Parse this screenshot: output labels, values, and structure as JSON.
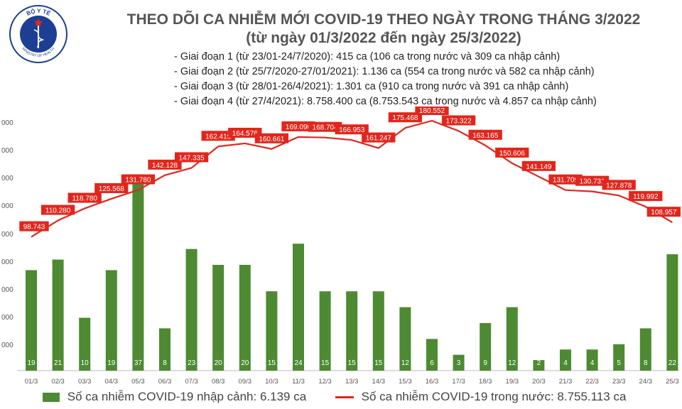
{
  "logo": {
    "text_top": "BỘ Y TẾ",
    "text_bottom": "MINISTRY OF HEALTH",
    "icon": "ministry-of-health-emblem"
  },
  "title": {
    "line1": "THEO DÕI CA NHIỄM MỚI COVID-19 THEO NGÀY TRONG THÁNG 3/2022",
    "line2": "(từ ngày 01/3/2022 đến ngày 25/3/2022)"
  },
  "stages": [
    "- Giai đoạn 1 (từ 23/01-24/7/2020): 415 ca (106 ca trong nước và 309 ca nhập cảnh)",
    "- Giai đoạn 2 (từ 25/7/2020-27/01/2021): 1.136 ca (554 ca trong nước và 582 ca nhập cảnh)",
    "- Giai đoạn 3 (từ 28/01-26/4/2021): 1.301 ca (910 ca trong nước và 391 ca nhập cảnh)",
    "- Giai đoạn 4 (từ 27/4/2021): 8.758.400 ca (8.753.543 ca trong nước và 4.857 ca nhập cảnh)"
  ],
  "legend": {
    "bars": "Số ca nhiễm COVID-19 nhập cảnh: 6.139 ca",
    "line": "Số ca nhiễm COVID-19 trong nước: 8.755.113 ca"
  },
  "colors": {
    "bar": "#4d8a32",
    "line": "#e1261c",
    "label_bg": "#e1261c",
    "title": "#555555"
  },
  "chart_data": {
    "type": "bar+line",
    "categories": [
      "01/3",
      "02/3",
      "03/3",
      "04/3",
      "05/3",
      "06/3",
      "07/3",
      "08/3",
      "09/3",
      "10/3",
      "11/3",
      "12/3",
      "13/3",
      "14/3",
      "15/3",
      "16/3",
      "17/3",
      "18/3",
      "19/3",
      "20/3",
      "21/3",
      "22/3",
      "23/3",
      "24/3",
      "25/3"
    ],
    "series": [
      {
        "name": "Số ca nhiễm COVID-19 nhập cảnh: 6.139 ca",
        "type": "bar",
        "values": [
          19,
          21,
          10,
          19,
          37,
          8,
          23,
          20,
          20,
          15,
          24,
          15,
          15,
          15,
          12,
          6,
          3,
          9,
          12,
          2,
          4,
          4,
          5,
          8,
          22
        ],
        "labels": [
          "19",
          "21",
          "10",
          "19",
          "37",
          "8",
          "23",
          "20",
          "20",
          "15",
          "24",
          "15",
          "15",
          "15",
          "12",
          "6",
          "3",
          "9",
          "12",
          "2",
          "4",
          "4",
          "5",
          "8",
          "22"
        ]
      },
      {
        "name": "Số ca nhiễm COVID-19 trong nước: 8.755.113 ca",
        "type": "line",
        "values": [
          98743,
          110280,
          118780,
          125568,
          131780,
          142128,
          147335,
          162415,
          164576,
          160661,
          169090,
          168704,
          166953,
          161247,
          175468,
          180552,
          173322,
          163165,
          150606,
          141149,
          131709,
          130731,
          127878,
          119992,
          108957
        ],
        "labels": [
          "98.743",
          "110.280",
          "118.780",
          "125.568",
          "131.780",
          "142.128",
          "147.335",
          "162.415",
          "164.576",
          "160.661",
          "169.090",
          "168.704",
          "166.953",
          "161.247",
          "175.468",
          "180.552",
          "173.322",
          "163.165",
          "150.606",
          "141.149",
          "131.709",
          "130.731",
          "127.878",
          "119.992",
          "108.957"
        ]
      }
    ],
    "y_axis_ticks": [
      "000",
      "000",
      "000",
      "000",
      "000",
      "000",
      "000",
      "000",
      "000",
      ""
    ],
    "grid": false,
    "legend_position": "bottom"
  }
}
